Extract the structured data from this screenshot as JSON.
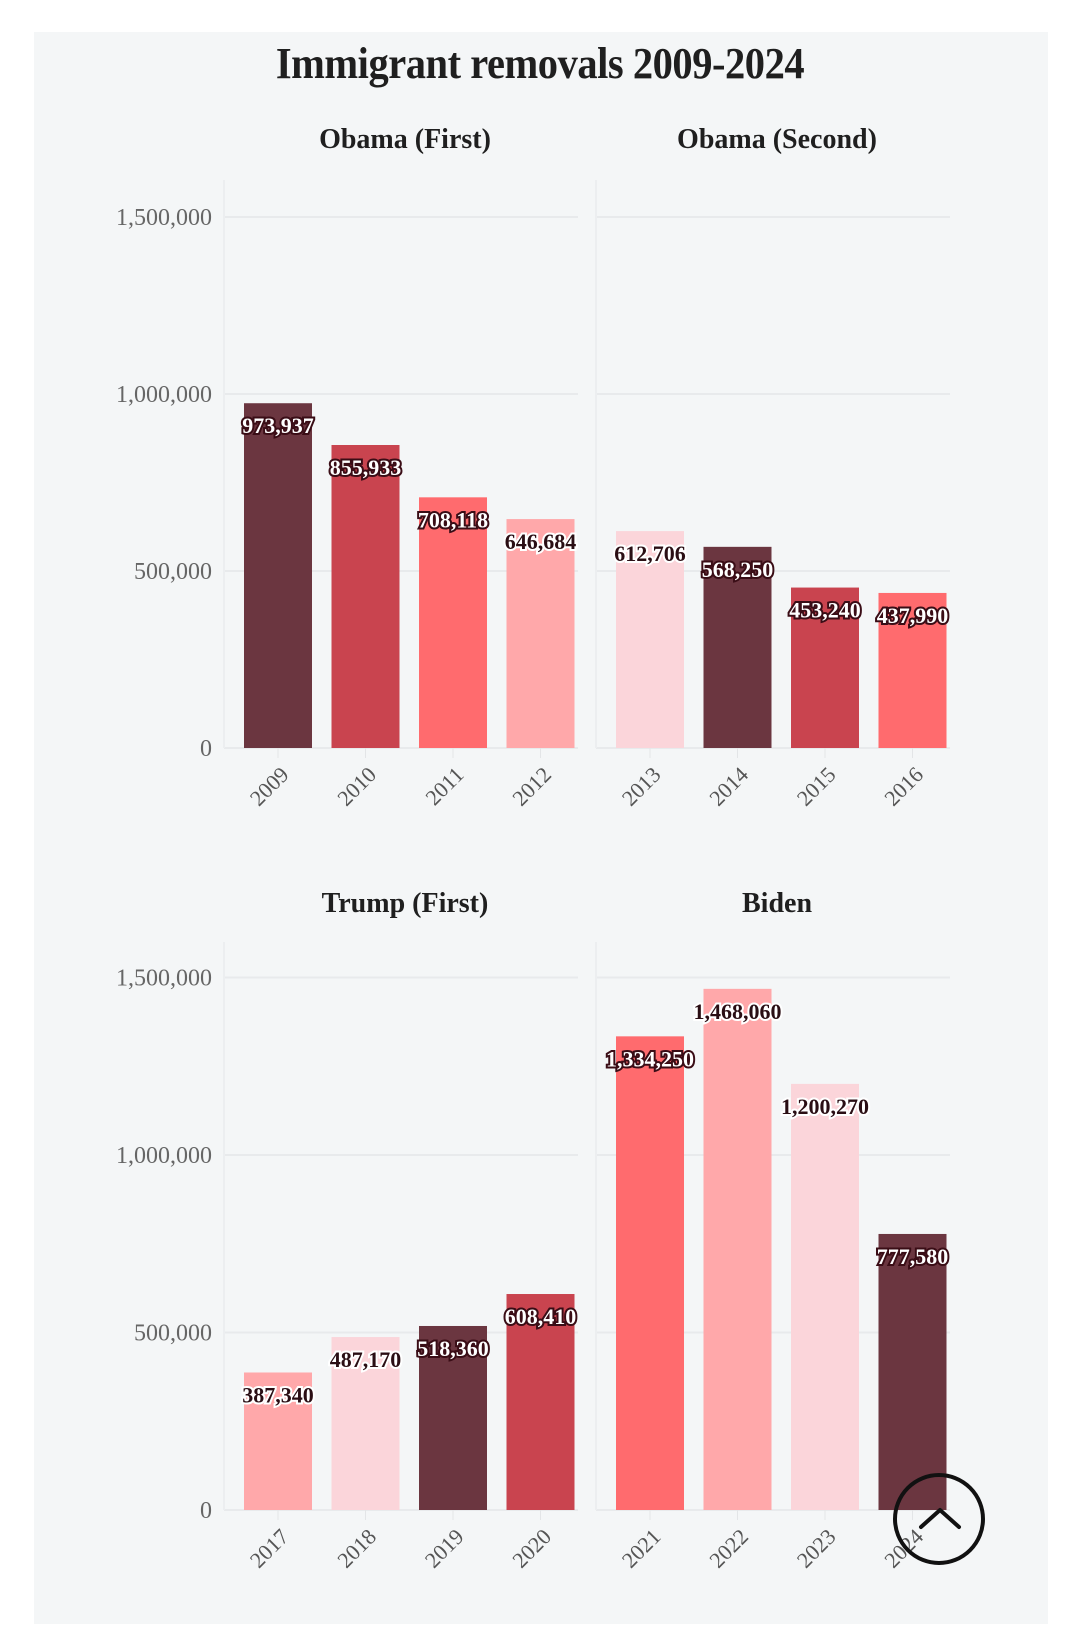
{
  "chart_data": {
    "type": "bar",
    "title": "Immigrant removals 2009-2024",
    "xlabel": "",
    "ylabel": "",
    "ylim": [
      0,
      1600000
    ],
    "yticks": [
      0,
      500000,
      1000000,
      1500000
    ],
    "ytick_labels": [
      "0",
      "500,000",
      "1,000,000",
      "1,500,000"
    ],
    "grid": true,
    "legend": "none",
    "panels": [
      {
        "name": "Obama (First)",
        "categories": [
          "2009",
          "2010",
          "2011",
          "2012"
        ],
        "values": [
          973937,
          855933,
          708118,
          646684
        ],
        "labels": [
          "973,937",
          "855,933",
          "708,118",
          "646,684"
        ],
        "colors": [
          "#6b3640",
          "#c9444f",
          "#ff6b6e",
          "#ffa8aa"
        ]
      },
      {
        "name": "Obama (Second)",
        "categories": [
          "2013",
          "2014",
          "2015",
          "2016"
        ],
        "values": [
          612706,
          568250,
          453240,
          437990
        ],
        "labels": [
          "612,706",
          "568,250",
          "453,240",
          "437,990"
        ],
        "colors": [
          "#fbd5da",
          "#6b3640",
          "#c9444f",
          "#ff6b6e"
        ]
      },
      {
        "name": "Trump (First)",
        "categories": [
          "2017",
          "2018",
          "2019",
          "2020"
        ],
        "values": [
          387340,
          487170,
          518360,
          608410
        ],
        "labels": [
          "387,340",
          "487,170",
          "518,360",
          "608,410"
        ],
        "colors": [
          "#ffa8aa",
          "#fbd5da",
          "#6b3640",
          "#c9444f"
        ]
      },
      {
        "name": "Biden",
        "categories": [
          "2021",
          "2022",
          "2023",
          "2024"
        ],
        "values": [
          1334250,
          1468060,
          1200270,
          777580
        ],
        "labels": [
          "1,334,250",
          "1,468,060",
          "1,200,270",
          "777,580"
        ],
        "colors": [
          "#ff6b6e",
          "#ffa8aa",
          "#fbd5da",
          "#6b3640"
        ]
      }
    ]
  },
  "ui": {
    "scroll_top_button": "scroll-to-top"
  }
}
